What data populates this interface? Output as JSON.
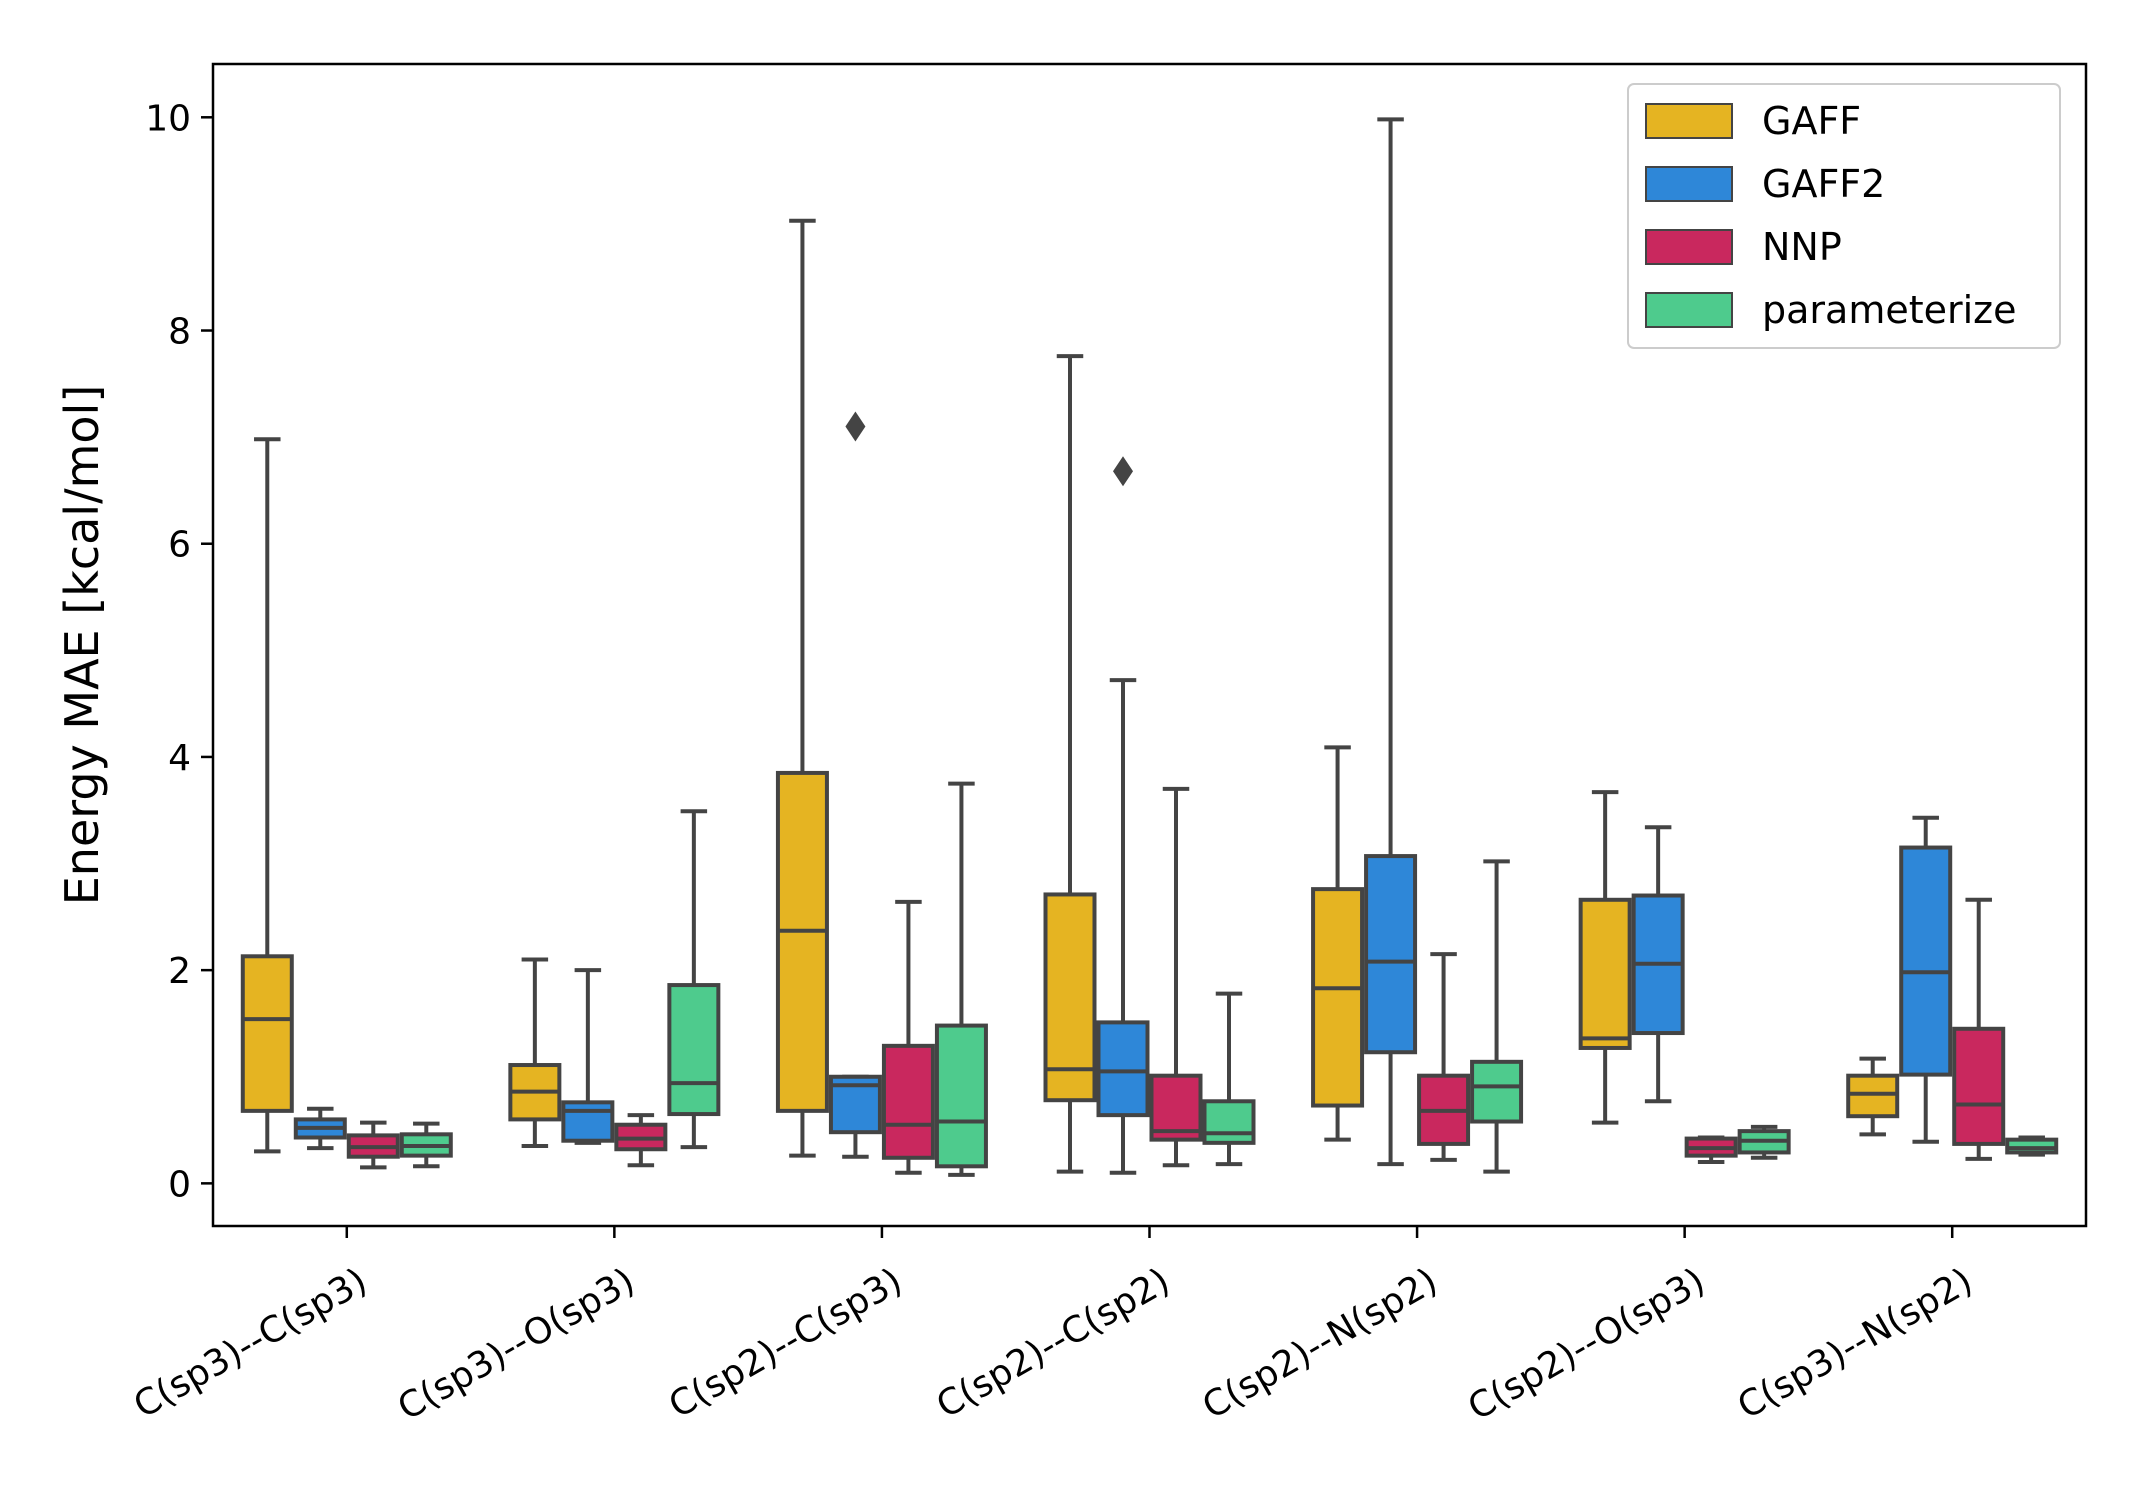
{
  "chart_data": {
    "type": "boxplot",
    "title": "",
    "xlabel": "",
    "ylabel": "Energy MAE [kcal/mol]",
    "ylim": [
      -0.4,
      10.5
    ],
    "yticks": [
      0,
      2,
      4,
      6,
      8,
      10
    ],
    "ytick_labels": [
      "0",
      "2",
      "4",
      "6",
      "8",
      "10"
    ],
    "legend_position": "top-right",
    "grid": false,
    "categories": [
      "C(sp3)--C(sp3)",
      "C(sp3)--O(sp3)",
      "C(sp2)--C(sp3)",
      "C(sp2)--C(sp2)",
      "C(sp2)--N(sp2)",
      "C(sp2)--O(sp3)",
      "C(sp3)--N(sp2)"
    ],
    "series": [
      {
        "name": "GAFF",
        "color": "#E5B422",
        "boxes": [
          {
            "whislo": 0.3,
            "q1": 0.68,
            "med": 1.54,
            "q3": 2.13,
            "whishi": 6.98,
            "fliers": []
          },
          {
            "whislo": 0.35,
            "q1": 0.6,
            "med": 0.86,
            "q3": 1.11,
            "whishi": 2.1,
            "fliers": []
          },
          {
            "whislo": 0.26,
            "q1": 0.68,
            "med": 2.37,
            "q3": 3.85,
            "whishi": 9.03,
            "fliers": []
          },
          {
            "whislo": 0.11,
            "q1": 0.78,
            "med": 1.07,
            "q3": 2.71,
            "whishi": 7.76,
            "fliers": []
          },
          {
            "whislo": 0.41,
            "q1": 0.73,
            "med": 1.83,
            "q3": 2.76,
            "whishi": 4.09,
            "fliers": []
          },
          {
            "whislo": 0.57,
            "q1": 1.27,
            "med": 1.36,
            "q3": 2.66,
            "whishi": 3.67,
            "fliers": []
          },
          {
            "whislo": 0.46,
            "q1": 0.63,
            "med": 0.84,
            "q3": 1.01,
            "whishi": 1.17,
            "fliers": []
          }
        ]
      },
      {
        "name": "GAFF2",
        "color": "#2E87D8",
        "boxes": [
          {
            "whislo": 0.33,
            "q1": 0.43,
            "med": 0.52,
            "q3": 0.6,
            "whishi": 0.7,
            "fliers": []
          },
          {
            "whislo": 0.38,
            "q1": 0.4,
            "med": 0.68,
            "q3": 0.76,
            "whishi": 2.0,
            "fliers": []
          },
          {
            "whislo": 0.25,
            "q1": 0.48,
            "med": 0.92,
            "q3": 1.0,
            "whishi": 1.0,
            "fliers": [
              7.1
            ]
          },
          {
            "whislo": 0.1,
            "q1": 0.64,
            "med": 1.05,
            "q3": 1.51,
            "whishi": 4.72,
            "fliers": [
              6.68
            ]
          },
          {
            "whislo": 0.18,
            "q1": 1.23,
            "med": 2.08,
            "q3": 3.07,
            "whishi": 9.98,
            "fliers": []
          },
          {
            "whislo": 0.77,
            "q1": 1.41,
            "med": 2.06,
            "q3": 2.7,
            "whishi": 3.34,
            "fliers": []
          },
          {
            "whislo": 0.39,
            "q1": 1.02,
            "med": 1.98,
            "q3": 3.15,
            "whishi": 3.43,
            "fliers": []
          }
        ]
      },
      {
        "name": "NNP",
        "color": "#C9285E",
        "boxes": [
          {
            "whislo": 0.15,
            "q1": 0.25,
            "med": 0.34,
            "q3": 0.45,
            "whishi": 0.57,
            "fliers": []
          },
          {
            "whislo": 0.17,
            "q1": 0.32,
            "med": 0.42,
            "q3": 0.55,
            "whishi": 0.64,
            "fliers": []
          },
          {
            "whislo": 0.1,
            "q1": 0.24,
            "med": 0.55,
            "q3": 1.29,
            "whishi": 2.64,
            "fliers": []
          },
          {
            "whislo": 0.17,
            "q1": 0.41,
            "med": 0.49,
            "q3": 1.01,
            "whishi": 3.7,
            "fliers": []
          },
          {
            "whislo": 0.22,
            "q1": 0.37,
            "med": 0.68,
            "q3": 1.01,
            "whishi": 2.15,
            "fliers": []
          },
          {
            "whislo": 0.2,
            "q1": 0.26,
            "med": 0.33,
            "q3": 0.42,
            "whishi": 0.43,
            "fliers": []
          },
          {
            "whislo": 0.23,
            "q1": 0.37,
            "med": 0.74,
            "q3": 1.45,
            "whishi": 2.66,
            "fliers": []
          }
        ]
      },
      {
        "name": "parameterize",
        "color": "#4ECB8D",
        "boxes": [
          {
            "whislo": 0.16,
            "q1": 0.26,
            "med": 0.35,
            "q3": 0.46,
            "whishi": 0.56,
            "fliers": []
          },
          {
            "whislo": 0.34,
            "q1": 0.65,
            "med": 0.94,
            "q3": 1.86,
            "whishi": 3.49,
            "fliers": []
          },
          {
            "whislo": 0.08,
            "q1": 0.16,
            "med": 0.58,
            "q3": 1.48,
            "whishi": 3.75,
            "fliers": []
          },
          {
            "whislo": 0.18,
            "q1": 0.38,
            "med": 0.47,
            "q3": 0.77,
            "whishi": 1.78,
            "fliers": []
          },
          {
            "whislo": 0.11,
            "q1": 0.58,
            "med": 0.91,
            "q3": 1.14,
            "whishi": 3.02,
            "fliers": []
          },
          {
            "whislo": 0.24,
            "q1": 0.29,
            "med": 0.4,
            "q3": 0.49,
            "whishi": 0.53,
            "fliers": []
          },
          {
            "whislo": 0.27,
            "q1": 0.29,
            "med": 0.33,
            "q3": 0.41,
            "whishi": 0.43,
            "fliers": []
          }
        ]
      }
    ],
    "colors": {
      "box_edge": "#444444",
      "axis": "#000000",
      "legend_border": "#cccccc"
    }
  }
}
